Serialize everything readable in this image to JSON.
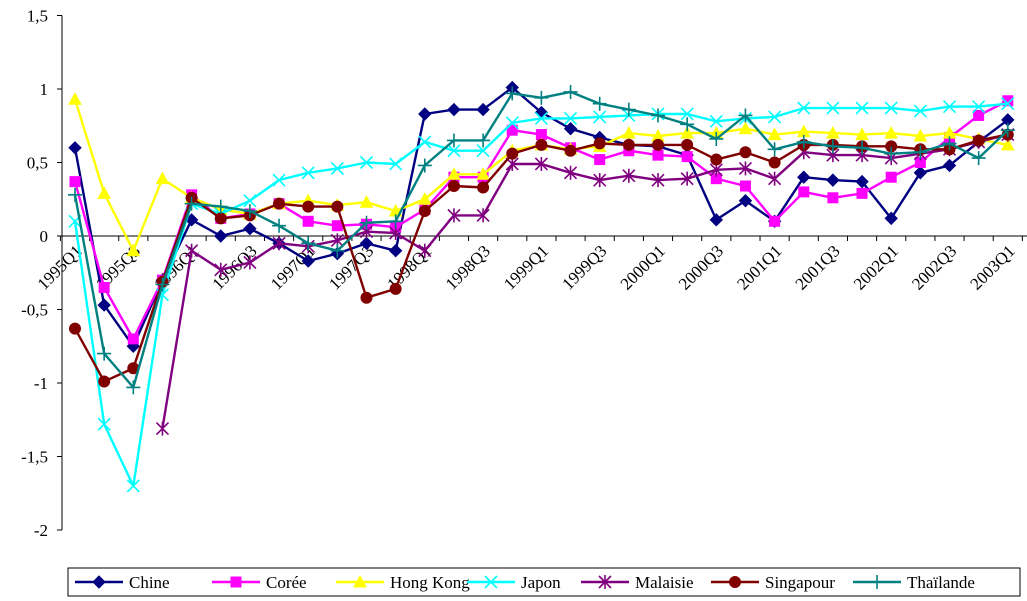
{
  "chart_data": {
    "type": "line",
    "title": "",
    "xlabel": "",
    "ylabel": "",
    "ylim": [
      -2,
      1.5
    ],
    "yticks": [
      1.5,
      1,
      0.5,
      0,
      -0.5,
      -1,
      -1.5,
      -2
    ],
    "ytick_labels": [
      "1,5",
      "1",
      "0,5",
      "0",
      "-0,5",
      "-1",
      "-1,5",
      "-2"
    ],
    "x": [
      "1995Q1",
      "1995Q2",
      "1995Q3",
      "1995Q4",
      "1996Q1",
      "1996Q2",
      "1996Q3",
      "1996Q4",
      "1997Q1",
      "1997Q2",
      "1997Q3",
      "1997Q4",
      "1998Q1",
      "1998Q2",
      "1998Q3",
      "1998Q4",
      "1999Q1",
      "1999Q2",
      "1999Q3",
      "1999Q4",
      "2000Q1",
      "2000Q2",
      "2000Q3",
      "2000Q4",
      "2001Q1",
      "2001Q2",
      "2001Q3",
      "2001Q4",
      "2002Q1",
      "2002Q2",
      "2002Q3",
      "2002Q4",
      "2003Q1",
      "2003Q2"
    ],
    "x_tick_labels": [
      "1995Q1",
      "1995Q3",
      "1996Q1",
      "1996Q3",
      "1997Q1",
      "1997Q3",
      "1998Q1",
      "1998Q3",
      "1999Q1",
      "1999Q3",
      "2000Q1",
      "2000Q3",
      "2001Q1",
      "2001Q3",
      "2002Q1",
      "2002Q3",
      "2003Q1"
    ],
    "legend_position": "bottom",
    "grid": false,
    "series": [
      {
        "name": "Chine",
        "color": "#000080",
        "marker": "diamond",
        "values": [
          0.6,
          -0.47,
          -0.75,
          -0.3,
          0.11,
          0.0,
          0.05,
          -0.05,
          -0.17,
          -0.12,
          -0.05,
          -0.1,
          0.83,
          0.86,
          0.86,
          1.01,
          0.84,
          0.73,
          0.67,
          0.62,
          0.61,
          0.55,
          0.11,
          0.24,
          0.1,
          0.4,
          0.38,
          0.37,
          0.12,
          0.43,
          0.48,
          0.64,
          0.79,
          null
        ]
      },
      {
        "name": "Corée",
        "color": "#ff00ff",
        "marker": "square",
        "values": [
          0.37,
          -0.35,
          -0.7,
          -0.3,
          0.28,
          0.12,
          0.15,
          0.22,
          0.1,
          0.07,
          0.08,
          0.06,
          0.18,
          0.4,
          0.4,
          0.72,
          0.69,
          0.6,
          0.52,
          0.58,
          0.55,
          0.54,
          0.39,
          0.34,
          0.1,
          0.3,
          0.26,
          0.29,
          0.4,
          0.5,
          0.67,
          0.82,
          0.92,
          null
        ]
      },
      {
        "name": "Hong Kong",
        "color": "#ffff00",
        "marker": "triangle",
        "values": [
          0.93,
          0.29,
          -0.1,
          0.39,
          0.26,
          0.18,
          0.15,
          0.22,
          0.24,
          0.21,
          0.23,
          0.17,
          0.25,
          0.42,
          0.42,
          0.58,
          0.62,
          0.59,
          0.61,
          0.7,
          0.68,
          0.7,
          0.7,
          0.73,
          0.69,
          0.71,
          0.7,
          0.69,
          0.7,
          0.68,
          0.7,
          0.66,
          0.62,
          null
        ]
      },
      {
        "name": "Japon",
        "color": "#00ffff",
        "marker": "x",
        "values": [
          0.1,
          -1.28,
          -1.7,
          -0.4,
          0.22,
          0.15,
          0.24,
          0.38,
          0.43,
          0.46,
          0.5,
          0.49,
          0.64,
          0.58,
          0.58,
          0.77,
          0.8,
          0.8,
          0.81,
          0.82,
          0.83,
          0.83,
          0.78,
          0.8,
          0.81,
          0.87,
          0.87,
          0.87,
          0.87,
          0.85,
          0.88,
          0.88,
          0.9,
          null
        ]
      },
      {
        "name": "Malaisie",
        "color": "#800080",
        "marker": "star",
        "values": [
          null,
          null,
          null,
          -1.31,
          -0.1,
          -0.23,
          -0.18,
          -0.05,
          -0.07,
          -0.03,
          0.03,
          0.02,
          -0.1,
          0.14,
          0.14,
          0.49,
          0.49,
          0.43,
          0.38,
          0.41,
          0.38,
          0.39,
          0.45,
          0.46,
          0.39,
          0.57,
          0.55,
          0.55,
          0.53,
          0.56,
          0.59,
          0.64,
          0.69,
          null
        ]
      },
      {
        "name": "Singapour",
        "color": "#800000",
        "marker": "circle",
        "values": [
          -0.63,
          -0.99,
          -0.9,
          -0.31,
          0.26,
          0.12,
          0.14,
          0.22,
          0.2,
          0.2,
          -0.42,
          -0.36,
          0.17,
          0.34,
          0.33,
          0.56,
          0.62,
          0.58,
          0.63,
          0.62,
          0.62,
          0.62,
          0.52,
          0.57,
          0.5,
          0.62,
          0.62,
          0.61,
          0.61,
          0.59,
          0.59,
          0.65,
          0.69,
          null
        ]
      },
      {
        "name": "Thaïlande",
        "color": "#008080",
        "marker": "plus",
        "values": [
          0.28,
          -0.8,
          -1.03,
          -0.33,
          0.22,
          0.2,
          0.17,
          0.07,
          -0.05,
          -0.1,
          0.09,
          0.1,
          0.48,
          0.65,
          0.65,
          0.97,
          0.94,
          0.98,
          0.9,
          0.86,
          0.82,
          0.76,
          0.66,
          0.82,
          0.59,
          0.64,
          0.61,
          0.6,
          0.56,
          0.57,
          0.63,
          0.53,
          0.72,
          null
        ]
      }
    ]
  }
}
